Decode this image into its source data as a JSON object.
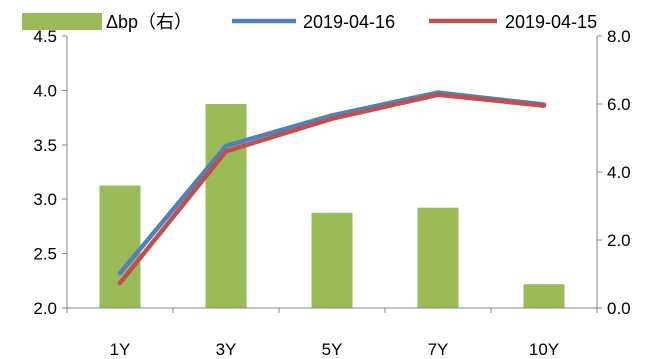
{
  "chart_data": {
    "type": "bar+line",
    "categories": [
      "1Y",
      "3Y",
      "5Y",
      "7Y",
      "10Y"
    ],
    "bar_series": {
      "name": "Δbp（右）",
      "axis": "right",
      "color": "#9bbb59",
      "values": [
        3.6,
        6.0,
        2.8,
        2.95,
        0.7
      ]
    },
    "line_series": [
      {
        "name": "2019-04-16",
        "axis": "left",
        "color": "#4f81bd",
        "values": [
          2.32,
          3.49,
          3.77,
          3.98,
          3.87
        ]
      },
      {
        "name": "2019-04-15",
        "axis": "left",
        "color": "#c0504d",
        "values": [
          2.23,
          3.44,
          3.74,
          3.96,
          3.86
        ]
      }
    ],
    "y_left": {
      "lim": [
        2.0,
        4.5
      ],
      "ticks": [
        "2.0",
        "2.5",
        "3.0",
        "3.5",
        "4.0",
        "4.5"
      ]
    },
    "y_right": {
      "lim": [
        0.0,
        8.0
      ],
      "ticks": [
        "0.0",
        "2.0",
        "4.0",
        "6.0",
        "8.0"
      ]
    },
    "grid": false,
    "legend_position": "top"
  }
}
